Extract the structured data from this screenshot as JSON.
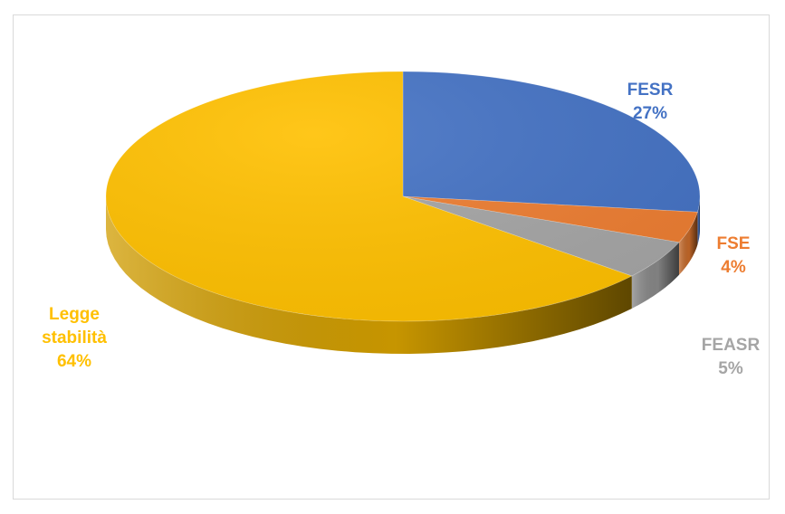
{
  "chart_data": {
    "type": "pie",
    "title": "",
    "slices": [
      {
        "label": "FESR",
        "value": 27,
        "display": "27%",
        "color": "#4472C4"
      },
      {
        "label": "FSE",
        "value": 4,
        "display": "4%",
        "color": "#ED7D31"
      },
      {
        "label": "FEASR",
        "value": 5,
        "display": "5%",
        "color": "#A5A5A5"
      },
      {
        "label": "Legge stabilità",
        "label_lines": [
          "Legge",
          "stabilità"
        ],
        "value": 64,
        "display": "64%",
        "color": "#FFC000"
      }
    ],
    "three_d": true,
    "legend": "none"
  }
}
